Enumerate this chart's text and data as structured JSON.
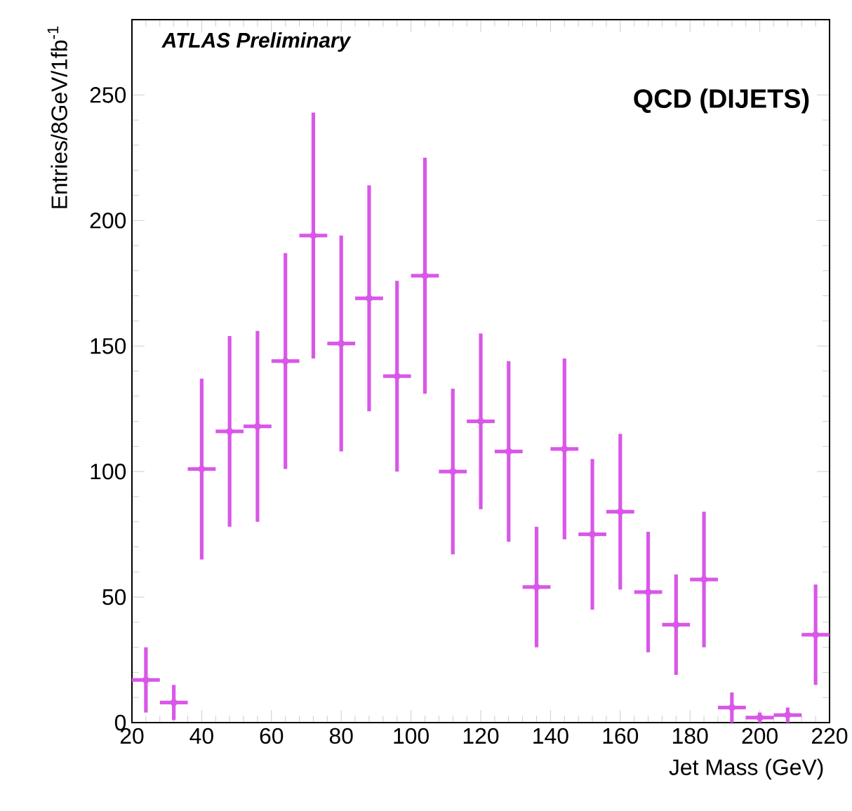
{
  "chart_data": {
    "type": "scatter",
    "xlabel": "Jet Mass (GeV)",
    "ylabel": "Entries/8GeV/1fb$^{-1}$",
    "annotations": [
      "ATLAS Preliminary",
      "QCD (DIJETS)"
    ],
    "xlim": [
      20,
      220
    ],
    "xticks": [
      20,
      40,
      60,
      80,
      100,
      120,
      140,
      160,
      180,
      200,
      220
    ],
    "ylim": [
      0,
      280
    ],
    "yticks": [
      0,
      50,
      100,
      150,
      200,
      250
    ],
    "series": [
      {
        "color": "#d957e8",
        "x": [
          24,
          32,
          40,
          48,
          56,
          64,
          72,
          80,
          88,
          96,
          104,
          112,
          120,
          128,
          136,
          144,
          152,
          160,
          168,
          176,
          184,
          192,
          200,
          208,
          216
        ],
        "values": [
          17,
          8,
          101,
          116,
          118,
          144,
          194,
          151,
          169,
          138,
          178,
          100,
          120,
          108,
          54,
          109,
          75,
          84,
          52,
          39,
          57,
          6,
          2,
          3,
          35
        ],
        "errors": [
          13,
          7,
          36,
          38,
          38,
          43,
          49,
          43,
          45,
          38,
          47,
          33,
          35,
          36,
          24,
          36,
          30,
          31,
          24,
          20,
          27,
          6,
          2,
          3,
          20
        ],
        "xerrors": [
          4,
          4,
          4,
          4,
          4,
          4,
          4,
          4,
          4,
          4,
          4,
          4,
          4,
          4,
          4,
          4,
          4,
          4,
          4,
          4,
          4,
          4,
          4,
          4,
          4
        ]
      }
    ]
  }
}
